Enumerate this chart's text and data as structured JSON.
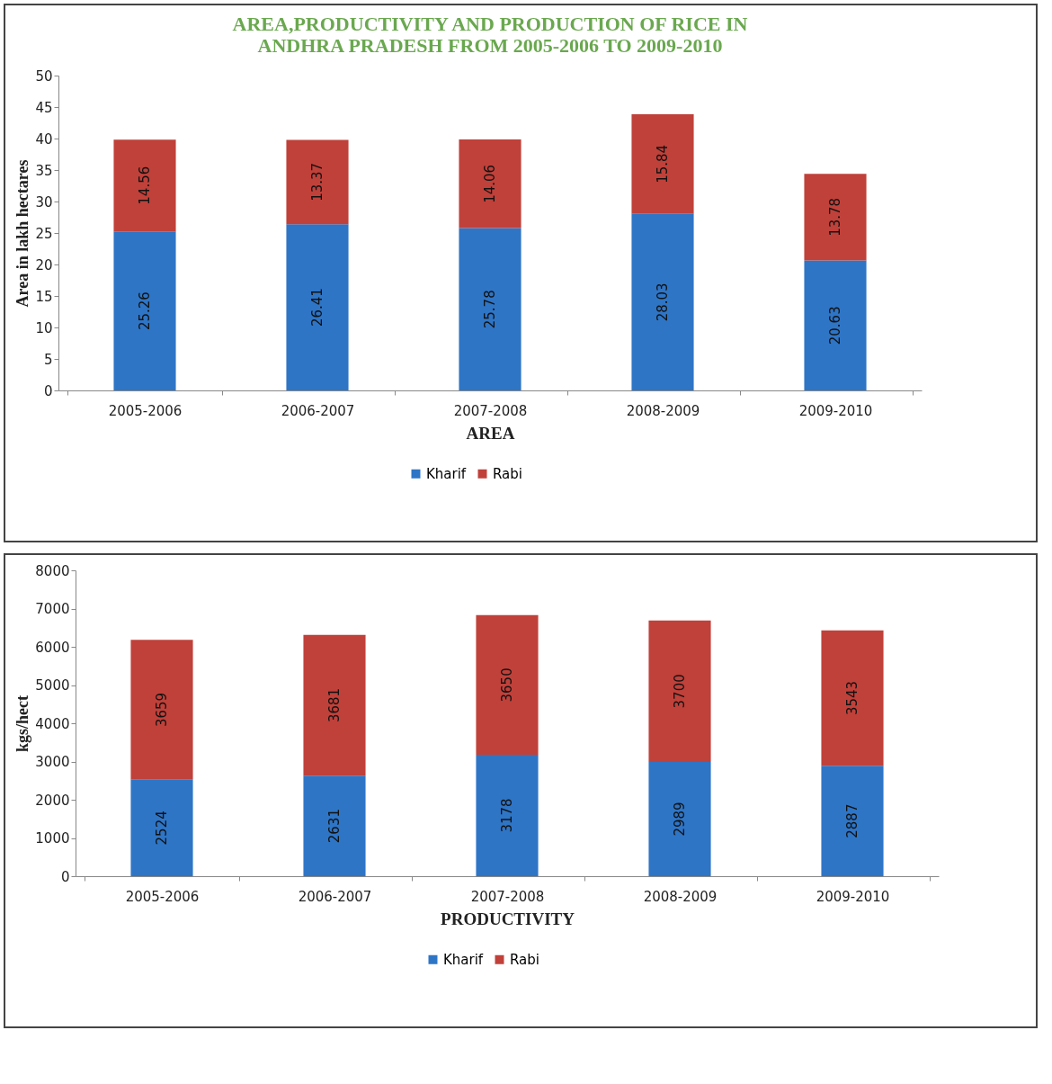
{
  "chart_data": [
    {
      "type": "bar",
      "title": "AREA,PRODUCTIVITY AND PRODUCTION OF RICE IN\nANDHRA PRADESH  FROM 2005-2006 TO 2009-2010",
      "xlabel": "AREA",
      "ylabel": "Area in lakh hectares",
      "categories": [
        "2005-2006",
        "2006-2007",
        "2007-2008",
        "2008-2009",
        "2009-2010"
      ],
      "stacked": true,
      "data_labels": true,
      "legend": "bottom",
      "grid": false,
      "ylim": [
        0,
        50
      ],
      "yticks": [
        0,
        5,
        10,
        15,
        20,
        25,
        30,
        35,
        40,
        45,
        50
      ],
      "series": [
        {
          "name": "Kharif",
          "color": "#2e75c6",
          "values": [
            25.26,
            26.41,
            25.78,
            28.03,
            20.63
          ]
        },
        {
          "name": "Rabi",
          "color": "#c0413a",
          "values": [
            14.56,
            13.37,
            14.06,
            15.84,
            13.78
          ]
        }
      ]
    },
    {
      "type": "bar",
      "xlabel": "PRODUCTIVITY",
      "ylabel": "kgs/hect",
      "categories": [
        "2005-2006",
        "2006-2007",
        "2007-2008",
        "2008-2009",
        "2009-2010"
      ],
      "stacked": true,
      "data_labels": true,
      "legend": "bottom",
      "grid": false,
      "ylim": [
        0,
        8000
      ],
      "yticks": [
        0,
        1000,
        2000,
        3000,
        4000,
        5000,
        6000,
        7000,
        8000
      ],
      "series": [
        {
          "name": "Kharif",
          "color": "#2e75c6",
          "values": [
            2524,
            2631,
            3178,
            2989,
            2887
          ]
        },
        {
          "name": "Rabi",
          "color": "#c0413a",
          "values": [
            3659,
            3681,
            3650,
            3700,
            3543
          ]
        }
      ]
    }
  ]
}
